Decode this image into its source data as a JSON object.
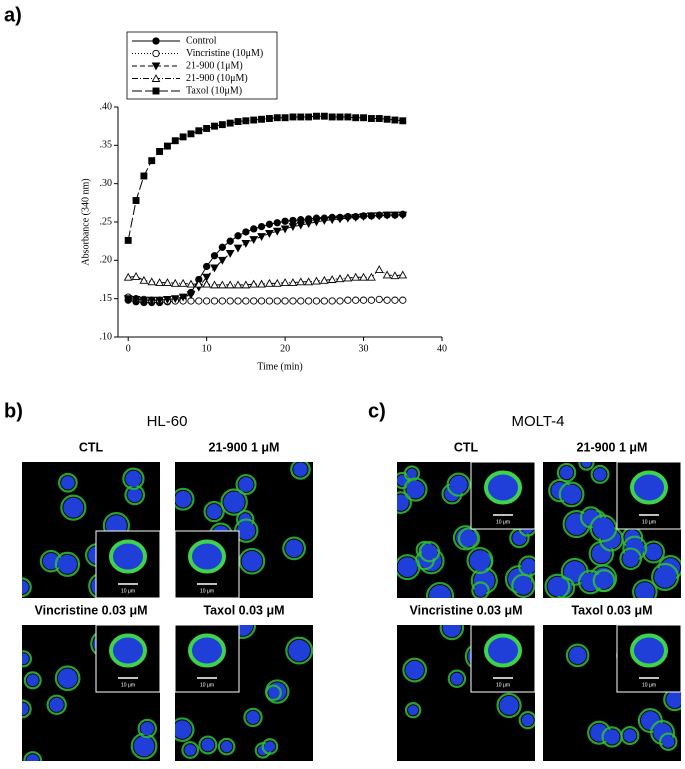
{
  "panel_a_label": "a)",
  "chart_data": {
    "type": "line",
    "x_label": "Time (min)",
    "y_label": "Absorbance (340 nm)",
    "x": [
      0,
      1,
      2,
      3,
      4,
      5,
      6,
      7,
      8,
      9,
      10,
      11,
      12,
      13,
      14,
      15,
      16,
      17,
      18,
      19,
      20,
      21,
      22,
      23,
      24,
      25,
      26,
      27,
      28,
      29,
      30,
      31,
      32,
      33,
      34,
      35
    ],
    "series": [
      {
        "name": "Control",
        "color": "#000000",
        "marker": "circle-filled",
        "dash": "solid",
        "values": [
          0.148,
          0.146,
          0.145,
          0.145,
          0.145,
          0.146,
          0.147,
          0.15,
          0.158,
          0.175,
          0.192,
          0.206,
          0.217,
          0.225,
          0.232,
          0.237,
          0.241,
          0.244,
          0.247,
          0.249,
          0.251,
          0.252,
          0.253,
          0.254,
          0.255,
          0.255,
          0.256,
          0.256,
          0.257,
          0.257,
          0.258,
          0.258,
          0.259,
          0.259,
          0.259,
          0.26
        ]
      },
      {
        "name": "Vincristine (10μM)",
        "color": "#000000",
        "marker": "circle-open",
        "dash": "dotted",
        "values": [
          0.152,
          0.15,
          0.149,
          0.148,
          0.148,
          0.147,
          0.147,
          0.147,
          0.147,
          0.147,
          0.147,
          0.147,
          0.147,
          0.147,
          0.147,
          0.147,
          0.147,
          0.147,
          0.147,
          0.147,
          0.147,
          0.147,
          0.147,
          0.147,
          0.147,
          0.147,
          0.147,
          0.147,
          0.148,
          0.148,
          0.148,
          0.148,
          0.149,
          0.148,
          0.148,
          0.148
        ]
      },
      {
        "name": "21-900 (1μM)",
        "color": "#000000",
        "marker": "triangle-down-filled",
        "dash": "dashed",
        "values": [
          0.15,
          0.149,
          0.148,
          0.148,
          0.148,
          0.149,
          0.15,
          0.152,
          0.155,
          0.165,
          0.178,
          0.19,
          0.2,
          0.209,
          0.216,
          0.222,
          0.227,
          0.231,
          0.235,
          0.238,
          0.241,
          0.244,
          0.246,
          0.248,
          0.25,
          0.252,
          0.253,
          0.254,
          0.255,
          0.256,
          0.257,
          0.258,
          0.258,
          0.259,
          0.259,
          0.259
        ]
      },
      {
        "name": "21-900 (10μM)",
        "color": "#000000",
        "marker": "triangle-up-open",
        "dash": "dashdot",
        "values": [
          0.178,
          0.179,
          0.174,
          0.172,
          0.171,
          0.171,
          0.17,
          0.17,
          0.169,
          0.169,
          0.169,
          0.168,
          0.168,
          0.168,
          0.168,
          0.168,
          0.169,
          0.169,
          0.17,
          0.17,
          0.171,
          0.171,
          0.172,
          0.172,
          0.173,
          0.174,
          0.175,
          0.176,
          0.177,
          0.178,
          0.178,
          0.178,
          0.188,
          0.181,
          0.18,
          0.181
        ]
      },
      {
        "name": "Taxol (10μM)",
        "color": "#000000",
        "marker": "square-filled",
        "dash": "longdash",
        "values": [
          0.226,
          0.278,
          0.31,
          0.33,
          0.342,
          0.349,
          0.356,
          0.361,
          0.365,
          0.369,
          0.372,
          0.375,
          0.377,
          0.379,
          0.381,
          0.382,
          0.383,
          0.384,
          0.385,
          0.386,
          0.386,
          0.387,
          0.387,
          0.387,
          0.388,
          0.388,
          0.387,
          0.387,
          0.387,
          0.386,
          0.386,
          0.385,
          0.385,
          0.384,
          0.383,
          0.382
        ]
      }
    ],
    "xlim": [
      -1.3,
      40
    ],
    "xticks": [
      0,
      10,
      20,
      30,
      40
    ],
    "ylim": [
      0.1,
      0.4
    ],
    "yticks": [
      {
        "value": 0.1,
        "label": ".10"
      },
      {
        "value": 0.15,
        "label": ".15"
      },
      {
        "value": 0.2,
        "label": ".20"
      },
      {
        "value": 0.25,
        "label": ".25"
      },
      {
        "value": 0.3,
        "label": ".30"
      },
      {
        "value": 0.35,
        "label": ".35"
      },
      {
        "value": 0.4,
        "label": ".40"
      }
    ],
    "grid": false,
    "legend": "top-left"
  },
  "panels": [
    {
      "label": "b)",
      "title": "HL-60",
      "images": [
        {
          "label": "CTL",
          "scale": "10 μm"
        },
        {
          "label": "21-900 1 μM",
          "scale": "10 μm"
        },
        {
          "label": "Vincristine 0.03 μM",
          "scale": "10 μm"
        },
        {
          "label": "Taxol 0.03 μM",
          "scale": "10 μm"
        }
      ]
    },
    {
      "label": "c)",
      "title": "MOLT-4",
      "images": [
        {
          "label": "CTL",
          "scale": "10 μm"
        },
        {
          "label": "21-900 1 μM",
          "scale": "10 μm"
        },
        {
          "label": "Vincristine 0.03 μM",
          "scale": "10 μm"
        },
        {
          "label": "Taxol 0.03 μM",
          "scale": "10 μm"
        }
      ]
    }
  ]
}
